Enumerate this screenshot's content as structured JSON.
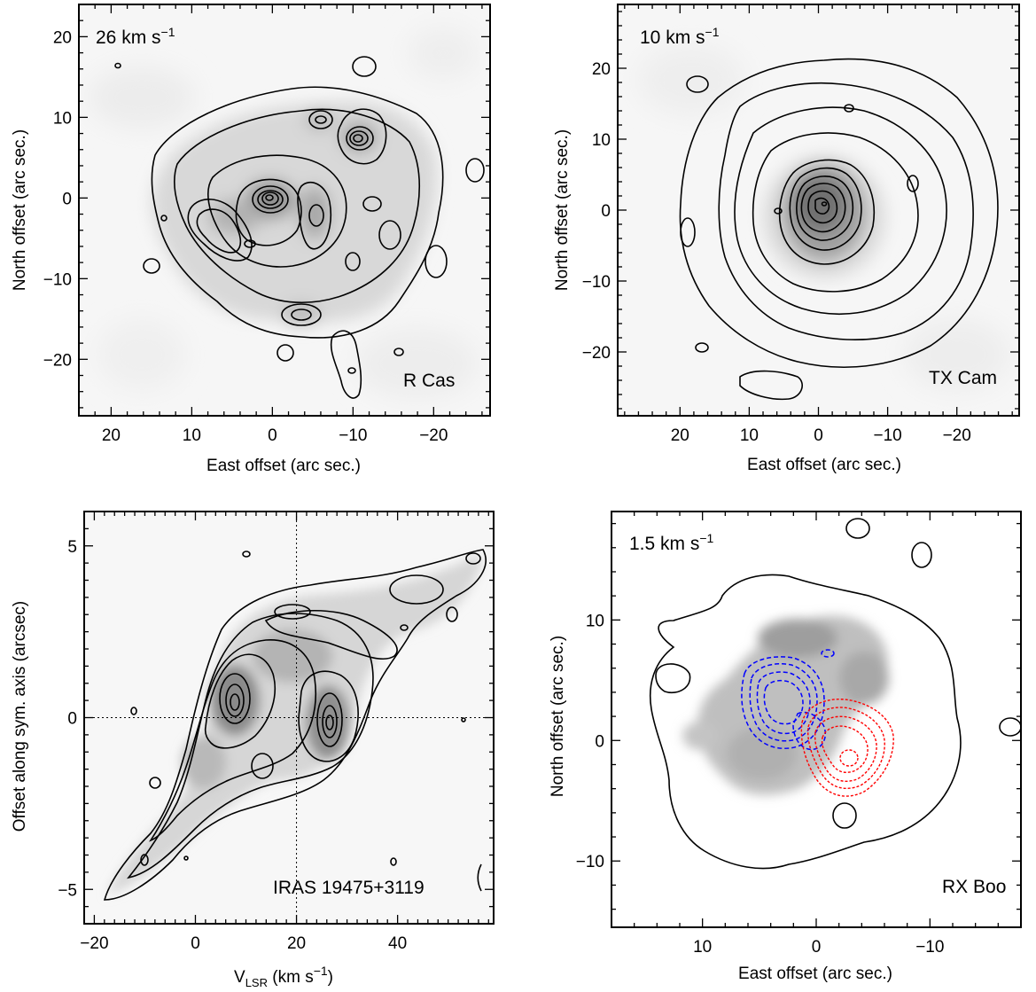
{
  "chart_data": [
    {
      "type": "contour",
      "velocity_label": "26 km s",
      "velocity_exp": "−1",
      "object_label": "R Cas",
      "xlabel": "East offset (arc sec.)",
      "ylabel": "North offset (arc sec.)",
      "xlim": [
        24,
        -27
      ],
      "ylim": [
        -27,
        24
      ],
      "xticks": [
        20,
        10,
        0,
        -10,
        -20
      ],
      "xtick_labels": [
        "20",
        "10",
        "0",
        "−10",
        "−20"
      ],
      "yticks": [
        20,
        10,
        0,
        -10,
        -20
      ],
      "ytick_labels": [
        "20",
        "10",
        "0",
        "−10",
        "−20"
      ],
      "grayscale": true,
      "contour_colors": [
        "#000000"
      ]
    },
    {
      "type": "contour",
      "velocity_label": "10 km s",
      "velocity_exp": "−1",
      "object_label": "TX Cam",
      "xlabel": "East offset (arc sec.)",
      "ylabel": "North offset (arc sec.)",
      "xlim": [
        29,
        -29
      ],
      "ylim": [
        -29,
        29
      ],
      "xticks": [
        20,
        10,
        0,
        -10,
        -20
      ],
      "xtick_labels": [
        "20",
        "10",
        "0",
        "−10",
        "−20"
      ],
      "yticks": [
        20,
        10,
        0,
        -10,
        -20
      ],
      "ytick_labels": [
        "20",
        "10",
        "0",
        "−10",
        "−20"
      ],
      "grayscale": true,
      "contour_colors": [
        "#000000"
      ]
    },
    {
      "type": "contour",
      "object_label": "IRAS 19475+3119",
      "xlabel_main": "V",
      "xlabel_sub": "LSR",
      "xlabel_rest": "  (km s",
      "xlabel_exp": "−1",
      "xlabel_close": ")",
      "ylabel": "Offset along sym. axis (arcsec)",
      "xlim": [
        -22,
        59
      ],
      "ylim": [
        -6,
        6
      ],
      "xticks": [
        -20,
        0,
        20,
        40
      ],
      "xtick_labels": [
        "−20",
        "0",
        "20",
        "40"
      ],
      "yticks": [
        5,
        0,
        -5
      ],
      "ytick_labels": [
        "5",
        "0",
        "−5"
      ],
      "reference_lines": {
        "x": 20,
        "y": 0
      },
      "grayscale": true,
      "contour_colors": [
        "#000000"
      ]
    },
    {
      "type": "contour",
      "velocity_label": "1.5 km s",
      "velocity_exp": "−1",
      "object_label": "RX Boo",
      "xlabel": "East offset (arc sec.)",
      "ylabel": "North offset (arc sec.)",
      "xlim": [
        18,
        -18
      ],
      "ylim": [
        -15.5,
        19
      ],
      "xticks": [
        10,
        0,
        -10
      ],
      "xtick_labels": [
        "10",
        "0",
        "−10"
      ],
      "yticks": [
        10,
        0,
        -10
      ],
      "ytick_labels": [
        "10",
        "0",
        "−10"
      ],
      "grayscale": true,
      "contour_colors": [
        "#000000",
        "#0000ff",
        "#ff0000"
      ]
    }
  ]
}
